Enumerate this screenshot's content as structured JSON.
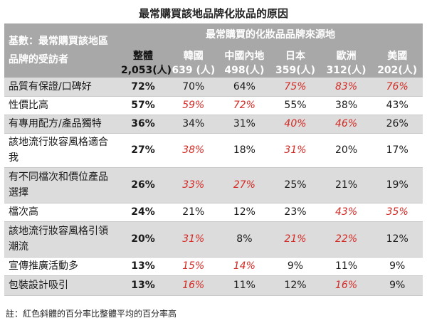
{
  "title": "最常購買該地品牌化妝品的原因",
  "header": {
    "corner_label": "基數：最常購買該地區品牌的受訪者",
    "span_label": "最常購買的化妝品品牌來源地",
    "columns": [
      {
        "name": "整體",
        "count": "2,053(人)"
      },
      {
        "name": "韓國",
        "count": "639 (人)"
      },
      {
        "name": "中國內地",
        "count": "498(人)"
      },
      {
        "name": "日本",
        "count": "359(人)"
      },
      {
        "name": "歐洲",
        "count": "312(人)"
      },
      {
        "name": "美國",
        "count": "202(人)"
      }
    ]
  },
  "rows": [
    {
      "label": "品質有保證/口碑好",
      "values": [
        "72%",
        "70%",
        "64%",
        "75%",
        "83%",
        "76%"
      ],
      "highlight": [
        false,
        false,
        false,
        true,
        true,
        true
      ]
    },
    {
      "label": "性價比高",
      "values": [
        "57%",
        "59%",
        "72%",
        "55%",
        "38%",
        "43%"
      ],
      "highlight": [
        false,
        true,
        true,
        false,
        false,
        false
      ]
    },
    {
      "label": "有專用配方/產品獨特",
      "values": [
        "36%",
        "34%",
        "31%",
        "40%",
        "46%",
        "26%"
      ],
      "highlight": [
        false,
        false,
        false,
        true,
        true,
        false
      ]
    },
    {
      "label": "該地流行妝容風格適合我",
      "values": [
        "27%",
        "38%",
        "18%",
        "31%",
        "20%",
        "17%"
      ],
      "highlight": [
        false,
        true,
        false,
        true,
        false,
        false
      ]
    },
    {
      "label": "有不同檔次和價位產品選擇",
      "values": [
        "26%",
        "33%",
        "27%",
        "25%",
        "21%",
        "19%"
      ],
      "highlight": [
        false,
        true,
        true,
        false,
        false,
        false
      ]
    },
    {
      "label": "檔次高",
      "values": [
        "24%",
        "21%",
        "12%",
        "23%",
        "43%",
        "35%"
      ],
      "highlight": [
        false,
        false,
        false,
        false,
        true,
        true
      ]
    },
    {
      "label": "該地流行妝容風格引領潮流",
      "values": [
        "20%",
        "31%",
        "8%",
        "21%",
        "22%",
        "12%"
      ],
      "highlight": [
        false,
        true,
        false,
        true,
        true,
        false
      ]
    },
    {
      "label": "宣傳推廣活動多",
      "values": [
        "13%",
        "15%",
        "14%",
        "9%",
        "11%",
        "9%"
      ],
      "highlight": [
        false,
        true,
        true,
        false,
        false,
        false
      ]
    },
    {
      "label": "包裝設計吸引",
      "values": [
        "13%",
        "16%",
        "11%",
        "12%",
        "16%",
        "9%"
      ],
      "highlight": [
        false,
        true,
        false,
        false,
        true,
        false
      ]
    }
  ],
  "note": "註：紅色斜體的百分率比整體平均的百分率高"
}
